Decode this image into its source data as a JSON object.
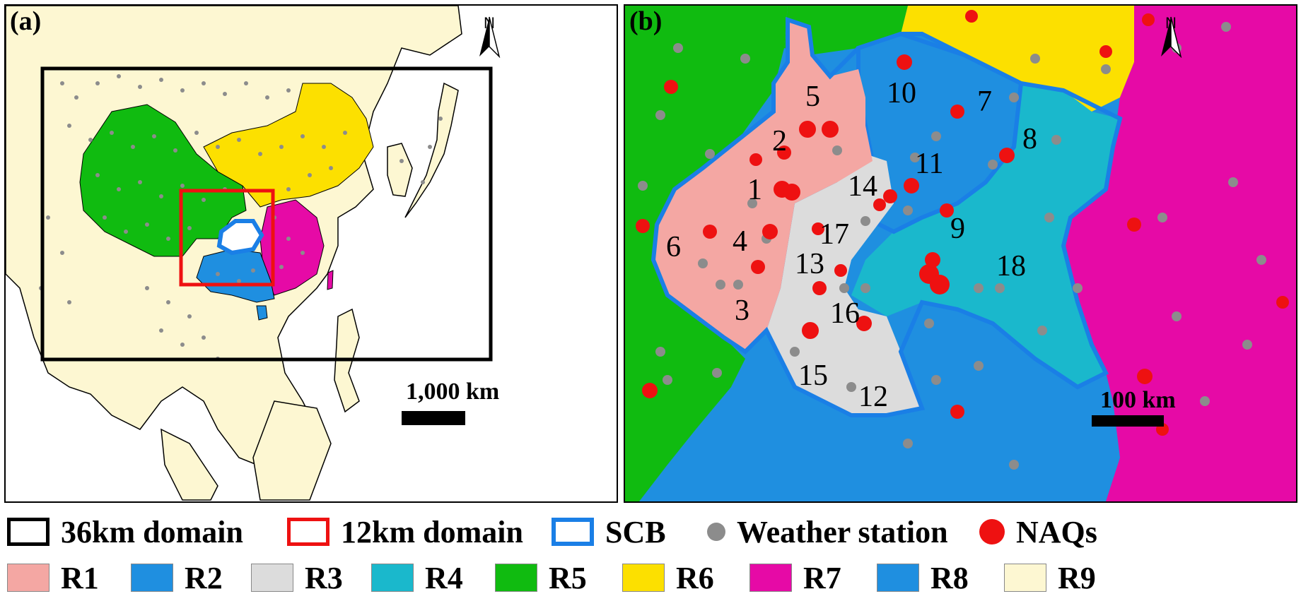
{
  "panel_a": {
    "label": "(a)",
    "north_label": "N",
    "scale_label": "1,000 km"
  },
  "panel_b": {
    "label": "(b)",
    "north_label": "N",
    "scale_label": "100 km",
    "region_numbers": [
      "1",
      "2",
      "3",
      "4",
      "5",
      "6",
      "7",
      "8",
      "9",
      "10",
      "11",
      "12",
      "13",
      "14",
      "15",
      "16",
      "17",
      "18"
    ]
  },
  "colors": {
    "R1": "#f4a7a3",
    "R2": "#1f8fe0",
    "R3": "#dcdcdc",
    "R4": "#1ab8cc",
    "R5": "#10bb10",
    "R6": "#fce000",
    "R7": "#e60aa6",
    "R8": "#1f8fe0",
    "R9": "#fdf7d2",
    "domain36": "#000000",
    "domain12": "#ee1111",
    "scb": "#1a7fe6",
    "weather_station": "#8c8c8c",
    "naqs": "#ee1111",
    "ocean": "#ffffff"
  },
  "legend": {
    "row1": [
      {
        "key": "domain36",
        "label": "36km domain",
        "icon": "black-outline-box"
      },
      {
        "key": "domain12",
        "label": "12km domain",
        "icon": "red-outline-box"
      },
      {
        "key": "scb",
        "label": "SCB",
        "icon": "blue-outline-box"
      },
      {
        "key": "weather_station",
        "label": "Weather station",
        "icon": "gray-dot"
      },
      {
        "key": "naqs",
        "label": "NAQs",
        "icon": "red-dot"
      }
    ],
    "row2": [
      {
        "key": "R1",
        "label": "R1"
      },
      {
        "key": "R2",
        "label": "R2"
      },
      {
        "key": "R3",
        "label": "R3"
      },
      {
        "key": "R4",
        "label": "R4"
      },
      {
        "key": "R5",
        "label": "R5"
      },
      {
        "key": "R6",
        "label": "R6"
      },
      {
        "key": "R7",
        "label": "R7"
      },
      {
        "key": "R8",
        "label": "R8"
      },
      {
        "key": "R9",
        "label": "R9"
      }
    ]
  }
}
